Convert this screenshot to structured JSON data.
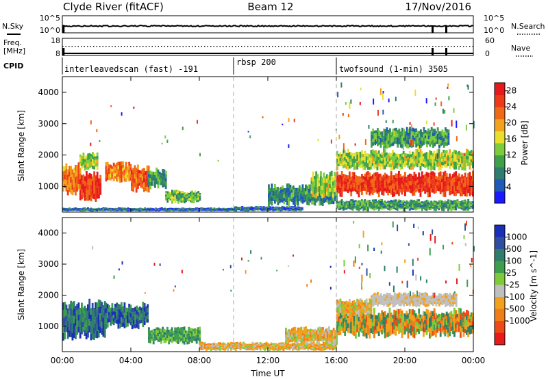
{
  "header": {
    "station": "Clyde River (fitACF)",
    "beam": "Beam 12",
    "date": "17/Nov/2016"
  },
  "strip_labels": {
    "nsky": "N.Sky",
    "nsky_top": "10^5",
    "nsky_bottom": "10^0",
    "nsearch": "N.Search",
    "nsearch_top": "10^5",
    "nsearch_bottom": "10^0",
    "freq_label": "Freq.",
    "freq_unit": "[MHz]",
    "freq_top": "18",
    "freq_bottom": "8",
    "nave": "Nave",
    "nave_top": "60",
    "nave_bottom": "0",
    "cpid": "CPID"
  },
  "cpid_segments": [
    {
      "start_h": 0,
      "label": "interleavedscan (fast) -191"
    },
    {
      "start_h": 10,
      "label": "rbsp 200"
    },
    {
      "start_h": 16,
      "label": "twofsound (1-min) 3505"
    }
  ],
  "colors": {
    "power_scale": [
      "#1a1aff",
      "#1f5ab8",
      "#2e7d6e",
      "#3ea04a",
      "#7ccc3c",
      "#e8e02c",
      "#f2a21c",
      "#ef6a16",
      "#ee3a18",
      "#e51a1a"
    ],
    "velocity_scale": [
      "#1a2fb8",
      "#2f4ea0",
      "#2f7d6b",
      "#3e9e4e",
      "#7ecb3a",
      "#bfbfbf",
      "#f2a11c",
      "#ef7d18",
      "#ee4a18",
      "#e81a1a"
    ],
    "dashed_line": "#aaaaaa"
  },
  "chart_data": [
    {
      "type": "heatmap",
      "name": "power-panel",
      "xlabel": "Time UT",
      "ylabel": "Slant Range [km]",
      "xlim": [
        0,
        24
      ],
      "ylim": [
        180,
        4500
      ],
      "x_ticks": [
        "00:00",
        "04:00",
        "08:00",
        "12:00",
        "16:00",
        "20:00",
        "00:00"
      ],
      "x_tick_hours": [
        0,
        4,
        8,
        12,
        16,
        20,
        24
      ],
      "y_ticks": [
        1000,
        2000,
        3000,
        4000
      ],
      "colorbar": {
        "label": "Power [dB]",
        "ticks": [
          "4",
          "8",
          "12",
          "16",
          "20",
          "24",
          "28"
        ],
        "range": [
          0,
          30
        ]
      },
      "echo_regions": [
        {
          "t0": 0.0,
          "t1": 1.0,
          "r0": 700,
          "r1": 1800,
          "level": 22
        },
        {
          "t0": 1.0,
          "t1": 2.2,
          "r0": 500,
          "r1": 1500,
          "level": 26
        },
        {
          "t0": 1.0,
          "t1": 2.0,
          "r0": 1500,
          "r1": 2100,
          "level": 14
        },
        {
          "t0": 2.5,
          "t1": 4.0,
          "r0": 1100,
          "r1": 1800,
          "level": 22
        },
        {
          "t0": 4.0,
          "t1": 5.0,
          "r0": 800,
          "r1": 1700,
          "level": 24
        },
        {
          "t0": 5.0,
          "t1": 6.0,
          "r0": 900,
          "r1": 1600,
          "level": 10
        },
        {
          "t0": 6.0,
          "t1": 8.0,
          "r0": 450,
          "r1": 900,
          "level": 12
        },
        {
          "t0": 0.0,
          "t1": 10.0,
          "r0": 200,
          "r1": 330,
          "level": 6
        },
        {
          "t0": 10.0,
          "t1": 14.0,
          "r0": 200,
          "r1": 380,
          "level": 6
        },
        {
          "t0": 12.0,
          "t1": 16.0,
          "r0": 350,
          "r1": 1100,
          "level": 8
        },
        {
          "t0": 14.5,
          "t1": 16.0,
          "r0": 600,
          "r1": 1500,
          "level": 14
        },
        {
          "t0": 16.0,
          "t1": 24.0,
          "r0": 650,
          "r1": 1500,
          "level": 26
        },
        {
          "t0": 16.0,
          "t1": 24.0,
          "r0": 1500,
          "r1": 2200,
          "level": 14
        },
        {
          "t0": 18.0,
          "t1": 22.5,
          "r0": 2200,
          "r1": 2900,
          "level": 10
        },
        {
          "t0": 16.0,
          "t1": 24.0,
          "r0": 200,
          "r1": 600,
          "level": 10
        }
      ]
    },
    {
      "type": "heatmap",
      "name": "velocity-panel",
      "xlabel": "Time UT",
      "ylabel": "Slant Range [km]",
      "xlim": [
        0,
        24
      ],
      "ylim": [
        180,
        4500
      ],
      "x_ticks": [
        "00:00",
        "04:00",
        "08:00",
        "12:00",
        "16:00",
        "20:00",
        "00:00"
      ],
      "x_tick_hours": [
        0,
        4,
        8,
        12,
        16,
        20,
        24
      ],
      "y_ticks": [
        1000,
        2000,
        3000,
        4000
      ],
      "colorbar": {
        "label": "Velocity [m s^-1]",
        "ticks": [
          "1000",
          "500",
          "100",
          "25",
          "-25",
          "-100",
          "-500",
          "-1000"
        ]
      },
      "echo_regions": [
        {
          "t0": 0.0,
          "t1": 2.5,
          "r0": 500,
          "r1": 1900,
          "class": "blue-green"
        },
        {
          "t0": 2.5,
          "t1": 5.0,
          "r0": 900,
          "r1": 1800,
          "class": "blue-green"
        },
        {
          "t0": 5.0,
          "t1": 8.0,
          "r0": 400,
          "r1": 1000,
          "class": "green"
        },
        {
          "t0": 8.0,
          "t1": 16.0,
          "r0": 200,
          "r1": 500,
          "class": "orange"
        },
        {
          "t0": 13.0,
          "t1": 16.0,
          "r0": 400,
          "r1": 1000,
          "class": "orange"
        },
        {
          "t0": 16.0,
          "t1": 24.0,
          "r0": 600,
          "r1": 1600,
          "class": "orange-green"
        },
        {
          "t0": 18.0,
          "t1": 23.0,
          "r0": 1600,
          "r1": 2100,
          "class": "grey"
        },
        {
          "t0": 16.0,
          "t1": 18.0,
          "r0": 1300,
          "r1": 1900,
          "class": "orange"
        }
      ]
    }
  ]
}
